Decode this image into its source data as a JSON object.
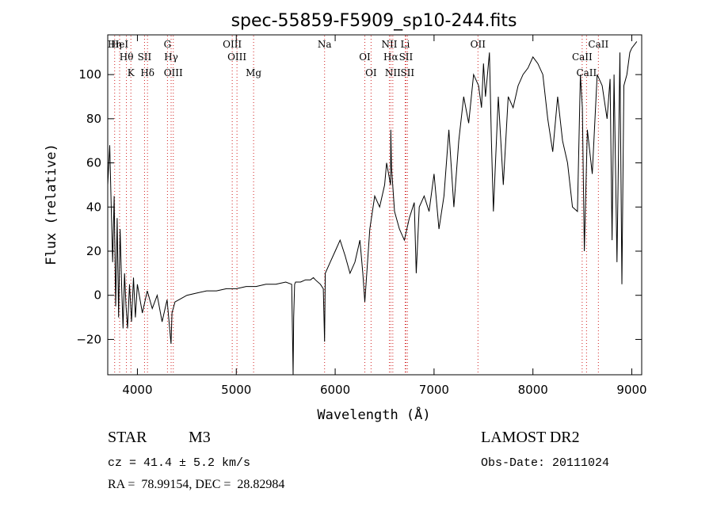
{
  "chart_data": {
    "type": "line",
    "title": "spec-55859-F5909_sp10-244.fits",
    "xlabel": "Wavelength (Å)",
    "ylabel": "Flux (relative)",
    "xlim": [
      3700,
      9100
    ],
    "ylim": [
      -36,
      118
    ],
    "xticks": [
      4000,
      5000,
      6000,
      7000,
      8000,
      9000
    ],
    "yticks": [
      -20,
      0,
      20,
      40,
      60,
      80,
      100
    ],
    "grid": false,
    "series": [
      {
        "x": [
          3700,
          3720,
          3735,
          3750,
          3765,
          3780,
          3795,
          3810,
          3825,
          3840,
          3855,
          3870,
          3885,
          3900,
          3920,
          3940,
          3960,
          3980,
          4000,
          4050,
          4100,
          4150,
          4200,
          4250,
          4300,
          4340,
          4350,
          4380,
          4420,
          4500,
          4600,
          4700,
          4800,
          4900,
          5000,
          5100,
          5200,
          5300,
          5400,
          5500,
          5560,
          5575,
          5580,
          5590,
          5600,
          5650,
          5700,
          5750,
          5780,
          5800,
          5850,
          5880,
          5893,
          5900,
          5950,
          6000,
          6050,
          6100,
          6150,
          6200,
          6250,
          6280,
          6300,
          6350,
          6400,
          6450,
          6500,
          6520,
          6540,
          6560,
          6563,
          6570,
          6600,
          6650,
          6700,
          6750,
          6800,
          6820,
          6850,
          6900,
          6950,
          7000,
          7050,
          7100,
          7150,
          7200,
          7250,
          7300,
          7350,
          7400,
          7450,
          7480,
          7500,
          7520,
          7560,
          7580,
          7600,
          7650,
          7700,
          7750,
          7800,
          7850,
          7900,
          7950,
          8000,
          8050,
          8100,
          8150,
          8200,
          8250,
          8300,
          8350,
          8400,
          8450,
          8480,
          8500,
          8520,
          8550,
          8600,
          8650,
          8700,
          8750,
          8780,
          8800,
          8820,
          8850,
          8880,
          8900,
          8920,
          8950,
          8980,
          9000,
          9050
        ],
        "y": [
          50,
          68,
          40,
          15,
          45,
          -5,
          35,
          -10,
          30,
          5,
          -15,
          10,
          -5,
          -15,
          5,
          -12,
          8,
          -10,
          5,
          -8,
          2,
          -6,
          0,
          -12,
          -2,
          -22,
          -8,
          -3,
          -2,
          0,
          1,
          2,
          2,
          3,
          3,
          4,
          4,
          5,
          5,
          6,
          5,
          -36,
          -10,
          5,
          6,
          6,
          7,
          7,
          8,
          7,
          5,
          3,
          -21,
          10,
          15,
          20,
          25,
          18,
          10,
          15,
          25,
          10,
          -3,
          30,
          45,
          40,
          50,
          60,
          55,
          50,
          75,
          58,
          38,
          30,
          25,
          35,
          42,
          10,
          40,
          45,
          38,
          55,
          30,
          45,
          75,
          40,
          70,
          90,
          78,
          100,
          95,
          85,
          105,
          90,
          110,
          70,
          38,
          90,
          50,
          90,
          85,
          95,
          100,
          103,
          108,
          105,
          100,
          80,
          65,
          90,
          70,
          60,
          40,
          38,
          100,
          85,
          20,
          75,
          55,
          100,
          95,
          80,
          98,
          25,
          100,
          15,
          110,
          5,
          95,
          100,
          110,
          112,
          115
        ]
      }
    ],
    "line_markers": [
      {
        "w": 3770,
        "label": "Hη"
      },
      {
        "w": 3889,
        "label": "Hθ"
      },
      {
        "w": 3934,
        "label": "K"
      },
      {
        "w": 3820,
        "label": "HeI"
      },
      {
        "w": 4072,
        "label": "SII"
      },
      {
        "w": 4102,
        "label": "Hδ"
      },
      {
        "w": 4304,
        "label": "G"
      },
      {
        "w": 4341,
        "label": "Hγ"
      },
      {
        "w": 4363,
        "label": "OIII"
      },
      {
        "w": 4959,
        "label": "OIII"
      },
      {
        "w": 5007,
        "label": "OIII"
      },
      {
        "w": 5175,
        "label": "Mg"
      },
      {
        "w": 5893,
        "label": "Na"
      },
      {
        "w": 6300,
        "label": "OI"
      },
      {
        "w": 6363,
        "label": "OI"
      },
      {
        "w": 6548,
        "label": "NII"
      },
      {
        "w": 6563,
        "label": "Hα"
      },
      {
        "w": 6583,
        "label": "NII"
      },
      {
        "w": 6708,
        "label": "Li"
      },
      {
        "w": 6716,
        "label": "SII"
      },
      {
        "w": 6731,
        "label": "SII"
      },
      {
        "w": 7444,
        "label": "OII"
      },
      {
        "w": 8498,
        "label": "CaII"
      },
      {
        "w": 8542,
        "label": "CaII"
      },
      {
        "w": 8662,
        "label": "CaII"
      }
    ]
  },
  "info": {
    "object_type": "STAR",
    "subclass": "M3",
    "survey": "LAMOST DR2",
    "cz": "cz = 41.4 ± 5.2 km/s",
    "obs_date": "Obs-Date: 20111024",
    "coords": "RA =  78.99154, DEC =  28.82984"
  },
  "colors": {
    "line": "#000000",
    "marker": "#d02020",
    "axis": "#000000"
  }
}
